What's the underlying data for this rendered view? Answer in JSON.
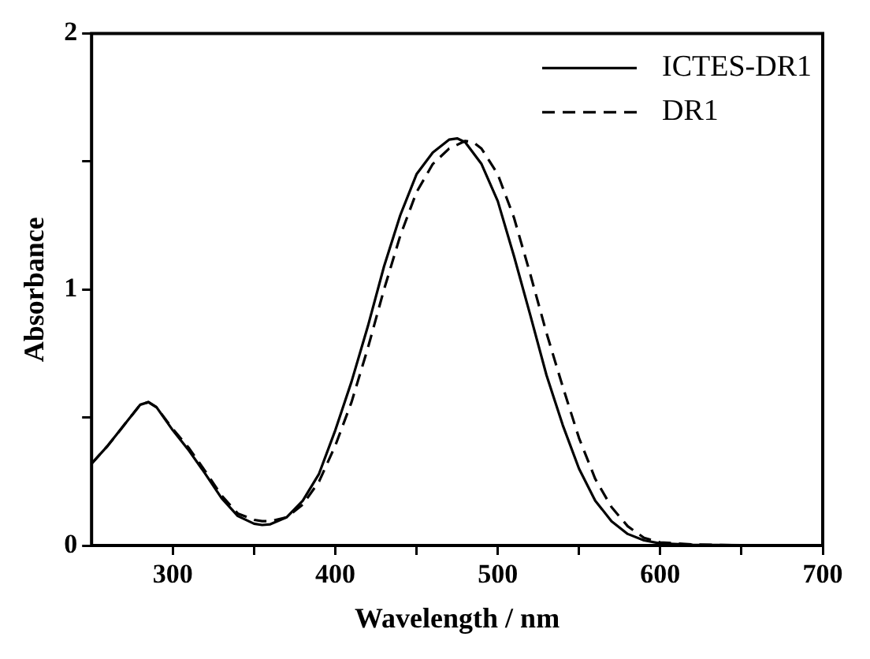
{
  "chart_data": {
    "type": "line",
    "xlabel": "Wavelength / nm",
    "ylabel": "Absorbance",
    "xlim": [
      250,
      700
    ],
    "xticks": [
      300,
      {
        "value": 350,
        "label": null
      },
      400,
      {
        "value": 450,
        "label": null
      },
      500,
      {
        "value": 550,
        "label": null
      },
      600,
      {
        "value": 650,
        "label": null
      },
      700
    ],
    "ylim": [
      0,
      2
    ],
    "yticks": [
      0,
      {
        "value": 0.5,
        "label": null
      },
      1,
      {
        "value": 1.5,
        "label": null
      },
      2
    ],
    "grid": false,
    "legend": "top right",
    "marker": "none",
    "series": [
      {
        "name": "ICTES-DR1",
        "color": "#000000",
        "line_style": "solid",
        "x": [
          250,
          260,
          270,
          280,
          285,
          290,
          300,
          310,
          320,
          330,
          340,
          350,
          355,
          360,
          370,
          380,
          390,
          400,
          410,
          420,
          430,
          440,
          450,
          460,
          470,
          475,
          480,
          490,
          500,
          510,
          520,
          530,
          540,
          550,
          560,
          570,
          580,
          590,
          600,
          620,
          650,
          700
        ],
        "values": [
          0.32,
          0.39,
          0.47,
          0.55,
          0.56,
          0.54,
          0.45,
          0.37,
          0.28,
          0.185,
          0.115,
          0.085,
          0.08,
          0.083,
          0.11,
          0.175,
          0.28,
          0.45,
          0.64,
          0.855,
          1.09,
          1.29,
          1.45,
          1.535,
          1.585,
          1.59,
          1.575,
          1.49,
          1.345,
          1.13,
          0.9,
          0.665,
          0.47,
          0.3,
          0.175,
          0.095,
          0.045,
          0.02,
          0.008,
          0.003,
          0.001,
          0
        ]
      },
      {
        "name": "DR1",
        "color": "#000000",
        "line_style": "dashed",
        "x": [
          250,
          260,
          270,
          280,
          285,
          290,
          300,
          310,
          320,
          330,
          340,
          350,
          355,
          360,
          370,
          380,
          390,
          400,
          410,
          420,
          430,
          440,
          450,
          460,
          470,
          480,
          485,
          490,
          500,
          510,
          520,
          530,
          540,
          550,
          560,
          570,
          580,
          590,
          600,
          620,
          650,
          700
        ],
        "values": [
          0.32,
          0.39,
          0.47,
          0.55,
          0.56,
          0.54,
          0.455,
          0.38,
          0.29,
          0.195,
          0.125,
          0.1,
          0.095,
          0.095,
          0.11,
          0.16,
          0.25,
          0.39,
          0.56,
          0.77,
          1.0,
          1.21,
          1.38,
          1.49,
          1.55,
          1.58,
          1.575,
          1.55,
          1.45,
          1.28,
          1.06,
          0.83,
          0.62,
          0.42,
          0.26,
          0.15,
          0.075,
          0.03,
          0.012,
          0.004,
          0.001,
          0
        ]
      }
    ]
  }
}
